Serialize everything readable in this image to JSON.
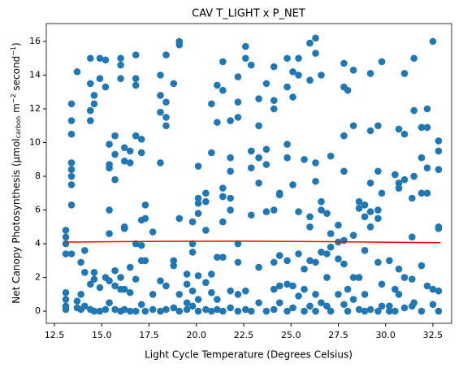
{
  "chart_data": {
    "type": "scatter",
    "title": "CAV T_LIGHT x P_NET",
    "xlabel": "Light Cycle Temperature (Degrees Celsius)",
    "ylabel": [
      {
        "text": "Net Canopy Photosynthesis (μmol"
      },
      {
        "text": "carbon",
        "sub": true
      },
      {
        "text": " m"
      },
      {
        "text": "−2",
        "sup": true
      },
      {
        "text": " second"
      },
      {
        "text": "−1",
        "sup": true
      },
      {
        "text": ")"
      }
    ],
    "xlim": [
      12.07,
      33.49
    ],
    "ylim": [
      -0.72,
      17.06
    ],
    "xticks": [
      12.5,
      {
        "value": 15,
        "label": "15.0"
      },
      17.5,
      {
        "value": 20,
        "label": "20.0"
      },
      22.5,
      {
        "value": 25,
        "label": "25.0"
      },
      27.5,
      {
        "value": 30,
        "label": "30.0"
      },
      32.5
    ],
    "yticks": [
      0,
      2,
      4,
      6,
      8,
      10,
      12,
      14,
      16
    ],
    "points": {
      "color": "#1f77b4",
      "x": [
        13.1,
        13.1,
        13.1,
        13.1,
        13.1,
        13.1,
        13.1,
        13.1,
        13.4,
        13.4,
        13.4,
        13.4,
        13.4,
        13.4,
        13.4,
        13.4,
        13.4,
        13.7,
        13.7,
        13.7,
        13.9,
        13.9,
        13.9,
        14.1,
        14.1,
        14.1,
        14.4,
        14.4,
        14.4,
        14.4,
        14.4,
        14.4,
        14.6,
        14.6,
        14.6,
        14.6,
        14.6,
        14.9,
        14.9,
        14.9,
        14.9,
        15.2,
        15.2,
        15.2,
        15.2,
        15.4,
        15.4,
        15.4,
        15.4,
        15.4,
        15.4,
        15.4,
        15.7,
        15.7,
        15.7,
        15.7,
        15.7,
        15.7,
        16.0,
        16.0,
        16.0,
        16.0,
        16.0,
        16.0,
        16.2,
        16.2,
        16.2,
        16.2,
        16.2,
        16.2,
        16.5,
        16.5,
        16.5,
        16.5,
        16.5,
        16.8,
        16.8,
        16.8,
        16.8,
        16.8,
        16.8,
        16.8,
        17.1,
        17.1,
        17.1,
        17.1,
        17.1,
        17.1,
        17.3,
        17.3,
        17.3,
        17.3,
        17.7,
        17.7,
        17.7,
        18.1,
        18.1,
        18.1,
        18.1,
        18.1,
        18.1,
        18.4,
        18.4,
        18.4,
        18.4,
        18.4,
        18.4,
        18.8,
        18.8,
        18.8,
        18.8,
        19.1,
        19.1,
        19.1,
        19.1,
        19.1,
        19.5,
        19.5,
        19.5,
        19.5,
        19.8,
        19.8,
        19.8,
        19.8,
        19.8,
        20.1,
        20.1,
        20.1,
        20.1,
        20.1,
        20.1,
        20.1,
        20.5,
        20.5,
        20.5,
        20.5,
        20.5,
        20.8,
        20.8,
        20.8,
        20.8,
        20.8,
        21.1,
        21.1,
        21.1,
        21.1,
        21.1,
        21.4,
        21.4,
        21.4,
        21.4,
        21.4,
        21.4,
        21.4,
        21.8,
        21.8,
        21.8,
        21.8,
        21.8,
        21.8,
        21.8,
        22.2,
        22.2,
        22.2,
        22.2,
        22.2,
        22.2,
        22.2,
        22.6,
        22.6,
        22.6,
        22.6,
        22.9,
        22.9,
        22.9,
        22.9,
        22.9,
        23.3,
        23.3,
        23.3,
        23.3,
        23.3,
        23.3,
        23.7,
        23.7,
        23.7,
        23.7,
        23.7,
        24.1,
        24.1,
        24.1,
        24.1,
        24.1,
        24.1,
        24.1,
        24.4,
        24.4,
        24.4,
        24.4,
        24.4,
        24.8,
        24.8,
        24.8,
        24.8,
        24.8,
        24.8,
        24.8,
        25.1,
        25.1,
        25.1,
        25.1,
        25.1,
        25.4,
        25.4,
        25.4,
        25.4,
        25.4,
        25.7,
        25.7,
        25.7,
        25.7,
        26.0,
        26.0,
        26.0,
        26.0,
        26.0,
        26.0,
        26.3,
        26.3,
        26.3,
        26.3,
        26.3,
        26.3,
        26.3,
        26.6,
        26.6,
        26.6,
        26.6,
        26.6,
        26.9,
        26.9,
        26.9,
        26.9,
        27.1,
        27.1,
        27.1,
        27.1,
        27.5,
        27.5,
        27.5,
        27.5,
        27.8,
        27.8,
        27.8,
        27.8,
        27.8,
        27.8,
        27.8,
        28.0,
        28.0,
        28.0,
        28.3,
        28.3,
        28.3,
        28.3,
        28.3,
        28.6,
        28.6,
        28.6,
        28.6,
        28.9,
        28.9,
        28.9,
        28.9,
        28.9,
        29.2,
        29.2,
        29.2,
        29.2,
        29.2,
        29.2,
        29.6,
        29.6,
        29.6,
        29.6,
        29.6,
        29.6,
        29.8,
        29.8,
        29.8,
        29.8,
        30.2,
        30.2,
        30.2,
        30.5,
        30.5,
        30.5,
        30.7,
        30.7,
        30.7,
        30.7,
        30.7,
        31.0,
        31.0,
        31.0,
        31.0,
        31.0,
        31.4,
        31.4,
        31.4,
        31.4,
        31.5,
        31.5,
        31.5,
        31.5,
        31.9,
        31.9,
        31.9,
        31.9,
        31.9,
        32.2,
        32.2,
        32.2,
        32.2,
        32.2,
        32.5,
        32.5,
        32.5,
        32.8,
        32.8,
        32.8,
        32.8,
        32.8,
        32.8,
        32.8
      ],
      "y": [
        4.8,
        4.4,
        4.0,
        3.4,
        1.1,
        0.7,
        0.3,
        0.1,
        12.3,
        11.3,
        10.5,
        8.8,
        8.4,
        8.0,
        7.5,
        6.3,
        3.4,
        14.2,
        0.6,
        0.2,
        2.9,
        1.0,
        0.1,
        3.6,
        2.3,
        0.3,
        15.0,
        13.5,
        11.3,
        11.9,
        1.6,
        0.1,
        12.8,
        12.3,
        1.9,
        2.3,
        0.0,
        15.0,
        13.8,
        0.0,
        1.4,
        14.9,
        13.3,
        2.0,
        0.1,
        9.9,
        8.5,
        8.7,
        6.0,
        4.6,
        1.8,
        0.5,
        10.4,
        9.3,
        7.8,
        2.4,
        1.5,
        0.1,
        15.0,
        14.6,
        13.8,
        2.0,
        1.3,
        0.0,
        9.7,
        8.9,
        5.0,
        4.9,
        1.3,
        0.1,
        9.5,
        8.8,
        2.6,
        1.1,
        0.0,
        15.2,
        13.8,
        13.4,
        10.4,
        4.0,
        1.9,
        0.0,
        10.2,
        9.4,
        5.4,
        3.9,
        3.0,
        0.4,
        6.3,
        5.5,
        3.0,
        0.0,
        4.7,
        1.0,
        0.1,
        14.0,
        12.8,
        11.8,
        8.8,
        1.8,
        0.0,
        15.2,
        12.4,
        11.0,
        11.5,
        1.5,
        0.1,
        13.5,
        3.0,
        2.7,
        0.2,
        16.0,
        15.8,
        5.5,
        1.0,
        0.0,
        2.2,
        1.6,
        0.5,
        0.1,
        5.3,
        4.0,
        3.5,
        1.2,
        0.3,
        8.6,
        6.7,
        6.4,
        5.8,
        2.1,
        0.7,
        0.0,
        7.0,
        6.5,
        4.8,
        1.7,
        0.1,
        12.3,
        9.4,
        2.2,
        1.1,
        0.0,
        13.4,
        11.2,
        3.2,
        0.7,
        0.1,
        14.8,
        13.1,
        7.3,
        6.8,
        5.3,
        3.2,
        0.0,
        11.3,
        9.1,
        8.3,
        6.7,
        6.0,
        1.2,
        0.2,
        13.9,
        12.4,
        11.5,
        4.0,
        2.9,
        1.0,
        0.0,
        15.7,
        15.0,
        1.2,
        0.1,
        14.6,
        9.5,
        8.5,
        5.7,
        0.0,
        12.6,
        11.0,
        9.1,
        7.6,
        2.6,
        0.5,
        13.5,
        9.6,
        8.7,
        5.9,
        0.0,
        14.5,
        12.5,
        12.0,
        6.0,
        2.9,
        1.3,
        0.1,
        7.0,
        6.9,
        3.3,
        1.5,
        0.5,
        15.0,
        13.3,
        9.9,
        9.1,
        3.0,
        1.6,
        0.0,
        14.2,
        12.7,
        7.5,
        1.5,
        0.2,
        15.0,
        14.0,
        5.9,
        3.4,
        0.9,
        9.0,
        2.5,
        1.3,
        0.0,
        15.9,
        13.7,
        5.6,
        5.0,
        3.0,
        0.3,
        16.2,
        15.3,
        8.8,
        7.7,
        2.9,
        1.0,
        0.0,
        14.0,
        6.5,
        6.0,
        3.5,
        0.5,
        5.8,
        3.4,
        2.0,
        0.3,
        9.2,
        4.6,
        3.8,
        0.0,
        5.1,
        4.1,
        3.1,
        1.0,
        14.7,
        13.3,
        10.4,
        8.3,
        4.2,
        2.8,
        0.4,
        13.1,
        1.3,
        0.0,
        14.3,
        11.0,
        4.5,
        2.0,
        0.7,
        6.5,
        6.1,
        2.0,
        0.1,
        6.3,
        5.6,
        3.6,
        1.0,
        0.0,
        14.1,
        10.7,
        7.6,
        5.9,
        5.0,
        0.1,
        11.0,
        8.3,
        6.0,
        5.5,
        2.9,
        0.0,
        14.8,
        7.0,
        1.6,
        0.3,
        0.0,
        0.3,
        3.0,
        8.1,
        1.3,
        0.0,
        10.8,
        7.6,
        7.3,
        2.5,
        1.0,
        14.1,
        10.5,
        7.8,
        2.0,
        0.2,
        6.7,
        4.4,
        1.9,
        0.3,
        15.0,
        11.9,
        8.0,
        0.5,
        10.9,
        9.1,
        7.0,
        2.7,
        0.0,
        12.0,
        10.9,
        8.5,
        7.0,
        1.5,
        16.0,
        1.3,
        0.4,
        10.1,
        9.5,
        8.4,
        5.0,
        4.9,
        1.2,
        0.0
      ]
    },
    "fit": {
      "type": "line",
      "color": "#ff0000",
      "x": [
        13.1,
        18.0,
        22.5,
        27.0,
        32.9
      ],
      "y": [
        4.1,
        4.14,
        4.15,
        4.12,
        4.06
      ]
    }
  }
}
